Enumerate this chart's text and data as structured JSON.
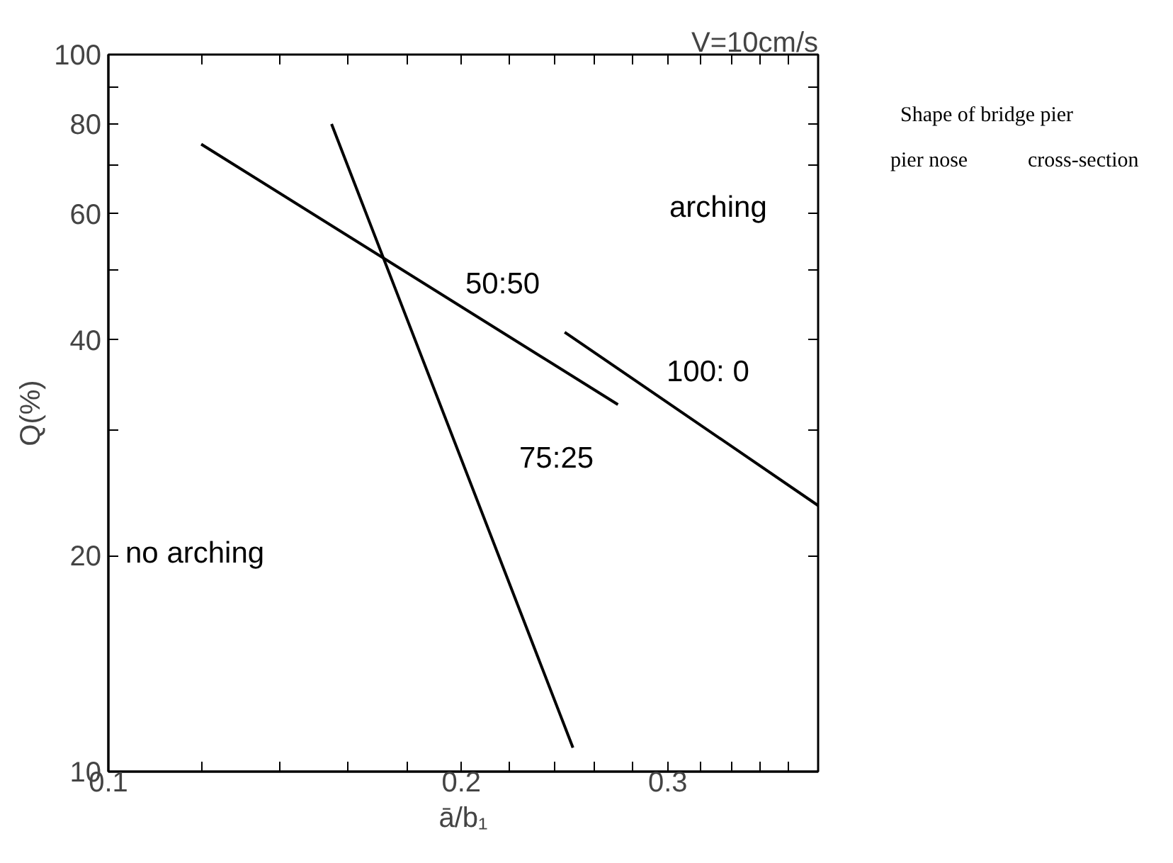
{
  "chart_data": {
    "type": "line",
    "title": "V=10cm/s",
    "xlabel": "ā/b₁",
    "ylabel": "Q(%)",
    "log": "xy",
    "xlim": [
      0.1,
      0.403
    ],
    "ylim": [
      10,
      100
    ],
    "xticks": [
      0.1,
      {
        "value": 0.12,
        "label": null
      },
      {
        "value": 0.14,
        "label": null
      },
      {
        "value": 0.16,
        "label": null
      },
      {
        "value": 0.18,
        "label": null
      },
      0.2,
      {
        "value": 0.22,
        "label": null
      },
      {
        "value": 0.24,
        "label": null
      },
      {
        "value": 0.26,
        "label": null
      },
      {
        "value": 0.28,
        "label": null
      },
      0.3,
      {
        "value": 0.32,
        "label": null
      },
      {
        "value": 0.34,
        "label": null
      },
      {
        "value": 0.36,
        "label": null
      },
      {
        "value": 0.38,
        "label": null
      }
    ],
    "yticks": [
      10,
      20,
      {
        "value": 30,
        "label": null
      },
      40,
      {
        "value": 50,
        "label": null
      },
      60,
      {
        "value": 70,
        "label": null
      },
      80,
      {
        "value": 90,
        "label": null
      },
      100
    ],
    "series": [
      {
        "color": "#000000",
        "x": [
          0.12,
          0.272
        ],
        "values": [
          75,
          32.5
        ]
      },
      {
        "color": "#000000",
        "x": [
          0.155,
          0.249
        ],
        "values": [
          80,
          10.8
        ]
      },
      {
        "color": "#000000",
        "x": [
          0.245,
          0.403
        ],
        "values": [
          41,
          23.5
        ]
      }
    ],
    "annotations": [
      "50:50",
      "75:25",
      "100:  0",
      "arching",
      "no arching",
      "Shape of bridge pier",
      "pier nose",
      "cross-section"
    ],
    "grid": false,
    "marker": "none",
    "line_style": "solid"
  }
}
